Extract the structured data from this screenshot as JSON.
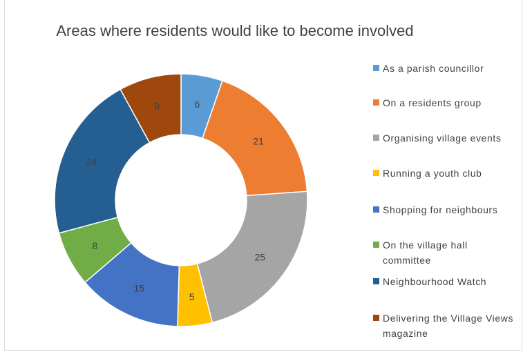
{
  "chart_data": {
    "type": "pie",
    "variant": "donut",
    "title": "Areas where residents would like to become involved",
    "categories": [
      "As a parish councillor",
      "On a residents group",
      "Organising village events",
      "Running a youth club",
      "Shopping for neighbours",
      "On the village hall committee",
      "Neighbourhood Watch",
      "Delivering the Village Views magazine"
    ],
    "values": [
      6,
      21,
      25,
      5,
      15,
      8,
      24,
      9
    ],
    "colors": [
      "#5b9bd5",
      "#ed7d31",
      "#a5a5a5",
      "#ffc000",
      "#4472c4",
      "#70ad47",
      "#255e91",
      "#9e480e"
    ],
    "legend_position": "right"
  }
}
